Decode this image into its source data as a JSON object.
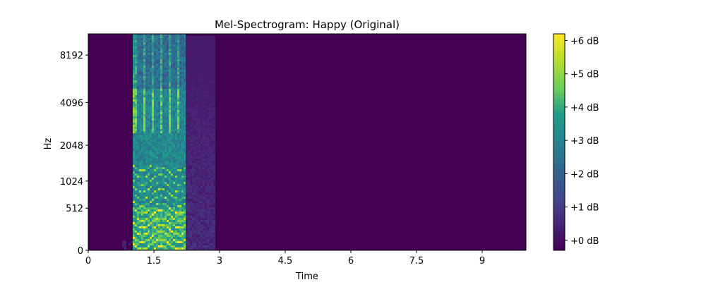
{
  "chart_data": {
    "type": "heatmap",
    "title": "Mel-Spectrogram: Happy (Original)",
    "xlabel": "Time",
    "ylabel": "Hz",
    "x_ticks": [
      "0",
      "1.5",
      "3",
      "4.5",
      "6",
      "7.5",
      "9"
    ],
    "y_ticks": [
      "0",
      "512",
      "1024",
      "2048",
      "4096",
      "8192"
    ],
    "xlim": [
      0,
      10
    ],
    "y_scale": "mel",
    "colorbar": {
      "ticks": [
        "+0 dB",
        "+1 dB",
        "+2 dB",
        "+3 dB",
        "+4 dB",
        "+5 dB",
        "+6 dB"
      ],
      "range": [
        -0.3,
        6.2
      ],
      "colormap": "viridis"
    },
    "speech_segment": {
      "start": 1.0,
      "end": 2.2
    },
    "background_color": "#440154"
  }
}
